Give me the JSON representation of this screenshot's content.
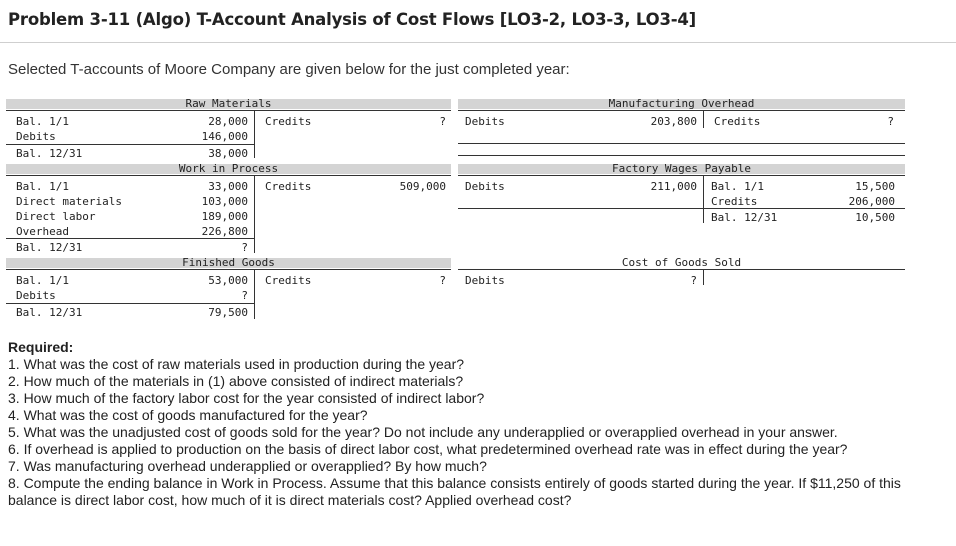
{
  "title": "Problem 3-11 (Algo) T-Account Analysis of Cost Flows [LO3-2, LO3-3, LO3-4]",
  "intro": "Selected T-accounts of Moore Company are given below for the just completed year:",
  "accounts": {
    "raw_materials": {
      "name": "Raw Materials",
      "rows": [
        {
          "label": "Bal. 1/1",
          "amount": "28,000"
        },
        {
          "label": "Debits",
          "amount": "146,000"
        },
        {
          "label": "Bal. 12/31",
          "amount": "38,000"
        }
      ],
      "credit_label": "Credits",
      "credit_amount": "?"
    },
    "manufacturing_overhead": {
      "name": "Manufacturing Overhead",
      "debit_label": "Debits",
      "debit_amount": "203,800",
      "credit_label": "Credits",
      "credit_amount": "?"
    },
    "work_in_process": {
      "name": "Work in Process",
      "rows": [
        {
          "label": "Bal. 1/1",
          "amount": "33,000"
        },
        {
          "label": "Direct materials",
          "amount": "103,000"
        },
        {
          "label": "Direct labor",
          "amount": "189,000"
        },
        {
          "label": "Overhead",
          "amount": "226,800"
        },
        {
          "label": "Bal. 12/31",
          "amount": "?"
        }
      ],
      "credit_label": "Credits",
      "credit_amount": "509,000"
    },
    "factory_wages_payable": {
      "name": "Factory Wages Payable",
      "debit_label": "Debits",
      "debit_amount": "211,000",
      "credit_rows": [
        {
          "label": "Bal. 1/1",
          "amount": "15,500"
        },
        {
          "label": "Credits",
          "amount": "206,000"
        },
        {
          "label": "Bal. 12/31",
          "amount": "10,500"
        }
      ]
    },
    "finished_goods": {
      "name": "Finished Goods",
      "rows": [
        {
          "label": "Bal. 1/1",
          "amount": "53,000"
        },
        {
          "label": "Debits",
          "amount": "?"
        },
        {
          "label": "Bal. 12/31",
          "amount": "79,500"
        }
      ],
      "credit_label": "Credits",
      "credit_amount": "?"
    },
    "cost_of_goods_sold": {
      "name": "Cost of Goods Sold",
      "debit_label": "Debits",
      "debit_amount": "?"
    }
  },
  "required": {
    "heading": "Required:",
    "questions": [
      "1. What was the cost of raw materials used in production during the year?",
      "2. How much of the materials in (1) above consisted of indirect materials?",
      "3. How much of the factory labor cost for the year consisted of indirect labor?",
      "4. What was the cost of goods manufactured for the year?",
      "5. What was the unadjusted cost of goods sold for the year? Do not include any underapplied or overapplied overhead in your answer.",
      "6. If overhead is applied to production on the basis of direct labor cost, what predetermined overhead rate was in effect during the year?",
      "7. Was manufacturing overhead underapplied or overapplied? By how much?",
      "8. Compute the ending balance in Work in Process. Assume that this balance consists entirely of goods started during the year. If $11,250 of this balance is direct labor cost, how much of it is direct materials cost? Applied overhead cost?"
    ]
  }
}
